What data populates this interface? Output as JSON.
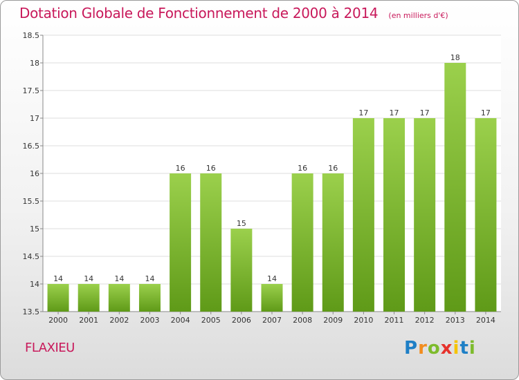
{
  "title": "Dotation Globale de Fonctionnement de 2000 à 2014",
  "subtitle": "(en milliers d'€)",
  "city": "FLAXIEU",
  "logo": {
    "text": "Proxiti",
    "letters": [
      "P",
      "r",
      "o",
      "x",
      "i",
      "t",
      "i"
    ]
  },
  "colors": {
    "title": "#c8185a",
    "bar_top": "#9bd04c",
    "bar_bottom": "#5f9a18",
    "grid": "#dddddd",
    "axis_text": "#333333"
  },
  "chart_data": {
    "type": "bar",
    "title": "Dotation Globale de Fonctionnement de 2000 à 2014",
    "subtitle": "(en milliers d'€)",
    "categories": [
      "2000",
      "2001",
      "2002",
      "2003",
      "2004",
      "2005",
      "2006",
      "2007",
      "2008",
      "2009",
      "2010",
      "2011",
      "2012",
      "2013",
      "2014"
    ],
    "values": [
      14,
      14,
      14,
      14,
      16,
      16,
      15,
      14,
      16,
      16,
      17,
      17,
      17,
      18,
      17
    ],
    "data_labels": [
      "14",
      "14",
      "14",
      "14",
      "16",
      "16",
      "15",
      "14",
      "16",
      "16",
      "17",
      "17",
      "17",
      "18",
      "17"
    ],
    "ylim": [
      13.5,
      18.5
    ],
    "yticks": [
      "13.5",
      "14",
      "14.5",
      "15",
      "15.5",
      "16",
      "16.5",
      "17",
      "17.5",
      "18",
      "18.5"
    ],
    "xlabel": "",
    "ylabel": "",
    "grid": true
  }
}
